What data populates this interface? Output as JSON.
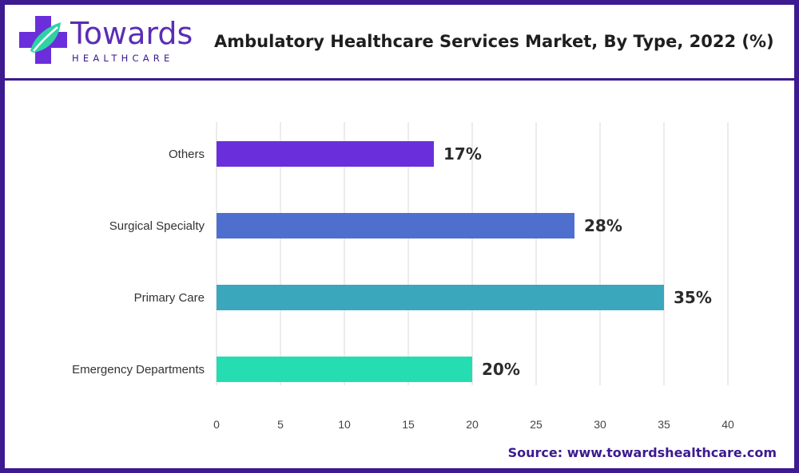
{
  "brand": {
    "name": "Towards",
    "tagline": "HEALTHCARE",
    "primary_color": "#5b2db5",
    "accent_color": "#2ed3a3",
    "frame_color": "#3d1a8f"
  },
  "source": "Source: www.towardshealthcare.com",
  "chart_data": {
    "type": "bar",
    "orientation": "horizontal",
    "title": "Ambulatory Healthcare Services Market, By Type, 2022 (%)",
    "categories": [
      "Others",
      "Surgical Specialty",
      "Primary Care",
      "Emergency Departments"
    ],
    "values": [
      17,
      28,
      35,
      20
    ],
    "value_labels": [
      "17%",
      "28%",
      "35%",
      "20%"
    ],
    "colors": [
      "#6a2fdb",
      "#4f6fcf",
      "#3aa7bd",
      "#25ddb0"
    ],
    "x_ticks": [
      "0",
      "5",
      "10",
      "15",
      "20",
      "25",
      "30",
      "35",
      "40"
    ],
    "xlim": [
      0,
      40
    ],
    "xlabel": "",
    "ylabel": "",
    "grid": "vertical",
    "legend": "none"
  }
}
